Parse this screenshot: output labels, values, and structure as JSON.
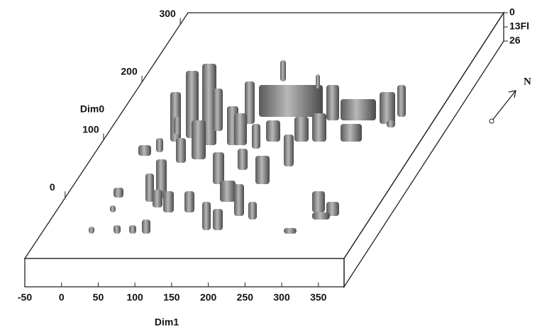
{
  "chart_data": {
    "type": "surface3d",
    "xlabel": "Dim1",
    "ylabel": "Dim0",
    "xlim": [
      -50,
      385
    ],
    "xticks": [
      -50,
      0,
      50,
      100,
      150,
      200,
      250,
      300,
      350
    ],
    "ylim": [
      -105,
      320
    ],
    "yticks": [
      0,
      100,
      200,
      300
    ],
    "zlim": [
      0,
      26
    ],
    "zticks": [
      0,
      {
        "value": 13,
        "label": "13Fl"
      },
      26
    ],
    "north_label": "N"
  }
}
